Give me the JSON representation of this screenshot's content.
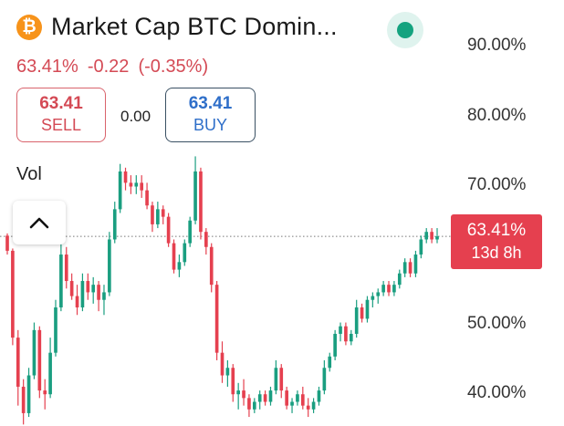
{
  "header": {
    "coin_icon": "bitcoin-icon",
    "coin_glyph": "₿",
    "title": "Market Cap BTC Domin...",
    "live_indicator": "live-dot-icon"
  },
  "quote": {
    "price": "63.41%",
    "change": "-0.22",
    "change_pct": "(-0.35%)"
  },
  "trade": {
    "sell_value": "63.41",
    "sell_label": "SELL",
    "spread": "0.00",
    "buy_value": "63.41",
    "buy_label": "BUY"
  },
  "indicators": {
    "vol_label": "Vol",
    "collapse_icon": "chevron-up-icon"
  },
  "price_tag": {
    "price": "63.41%",
    "countdown": "13d 8h"
  },
  "colors": {
    "up": "#1a9e80",
    "down": "#e5404f",
    "accent": "#f7931a"
  },
  "chart_data": {
    "type": "candlestick",
    "y_tick_labels": [
      "90.00%",
      "80.00%",
      "70.00%",
      "50.00%",
      "40.00%"
    ],
    "y_ticks": [
      90,
      80,
      70,
      50,
      40
    ],
    "ylim": [
      38.3,
      94.7
    ],
    "current_price": 63.41,
    "candles": [
      [
        63.5,
        63.8,
        61.0,
        61.5
      ],
      [
        61.5,
        61.8,
        49.0,
        50.0
      ],
      [
        50.0,
        51.0,
        41.0,
        43.5
      ],
      [
        43.5,
        44.5,
        38.5,
        40.0
      ],
      [
        40.0,
        46.0,
        39.5,
        45.0
      ],
      [
        45.0,
        52.0,
        44.5,
        51.0
      ],
      [
        51.0,
        51.5,
        42.0,
        43.0
      ],
      [
        43.0,
        44.5,
        40.5,
        42.5
      ],
      [
        42.5,
        50.0,
        42.0,
        48.0
      ],
      [
        48.0,
        55.0,
        47.5,
        54.0
      ],
      [
        54.0,
        63.0,
        53.5,
        61.0
      ],
      [
        61.0,
        62.0,
        56.5,
        57.5
      ],
      [
        57.5,
        58.5,
        55.0,
        55.5
      ],
      [
        55.5,
        57.0,
        53.0,
        54.0
      ],
      [
        54.0,
        58.5,
        53.5,
        57.5
      ],
      [
        57.5,
        58.5,
        55.0,
        56.0
      ],
      [
        56.0,
        58.0,
        54.5,
        57.0
      ],
      [
        57.0,
        57.5,
        53.5,
        55.0
      ],
      [
        55.0,
        57.0,
        53.0,
        56.0
      ],
      [
        56.0,
        64.0,
        55.5,
        63.0
      ],
      [
        63.0,
        68.0,
        62.5,
        67.0
      ],
      [
        67.0,
        73.0,
        66.5,
        72.0
      ],
      [
        72.0,
        72.5,
        69.5,
        70.5
      ],
      [
        70.5,
        71.5,
        69.0,
        70.0
      ],
      [
        70.0,
        71.5,
        69.0,
        70.5
      ],
      [
        70.5,
        71.5,
        68.5,
        69.5
      ],
      [
        69.5,
        70.5,
        67.0,
        67.5
      ],
      [
        67.5,
        68.0,
        64.0,
        65.0
      ],
      [
        65.0,
        68.0,
        64.5,
        67.0
      ],
      [
        67.0,
        67.5,
        65.0,
        66.0
      ],
      [
        66.0,
        66.5,
        62.0,
        62.5
      ],
      [
        62.5,
        63.0,
        58.5,
        59.0
      ],
      [
        59.0,
        61.0,
        58.0,
        60.0
      ],
      [
        60.0,
        63.0,
        59.5,
        62.5
      ],
      [
        62.5,
        66.0,
        62.0,
        65.5
      ],
      [
        65.5,
        74.0,
        65.0,
        72.0
      ],
      [
        72.0,
        72.5,
        63.0,
        64.0
      ],
      [
        64.0,
        64.5,
        61.0,
        62.0
      ],
      [
        62.0,
        62.5,
        56.0,
        57.0
      ],
      [
        57.0,
        57.5,
        47.0,
        48.0
      ],
      [
        48.0,
        49.5,
        44.0,
        45.0
      ],
      [
        45.0,
        47.0,
        43.5,
        46.0
      ],
      [
        46.0,
        46.5,
        41.5,
        42.5
      ],
      [
        42.5,
        44.0,
        40.5,
        43.0
      ],
      [
        43.0,
        44.5,
        41.0,
        42.0
      ],
      [
        42.0,
        42.5,
        39.5,
        40.5
      ],
      [
        40.5,
        42.0,
        40.0,
        41.5
      ],
      [
        41.5,
        43.0,
        40.5,
        42.5
      ],
      [
        42.5,
        43.0,
        41.0,
        41.5
      ],
      [
        41.5,
        43.5,
        41.0,
        43.0
      ],
      [
        43.0,
        47.0,
        42.5,
        46.0
      ],
      [
        46.0,
        46.5,
        42.0,
        43.0
      ],
      [
        43.0,
        43.5,
        40.5,
        41.0
      ],
      [
        41.0,
        42.0,
        40.0,
        41.5
      ],
      [
        41.5,
        43.0,
        41.0,
        42.5
      ],
      [
        42.5,
        43.5,
        40.5,
        41.0
      ],
      [
        41.0,
        42.0,
        39.5,
        40.5
      ],
      [
        40.5,
        42.0,
        40.0,
        41.5
      ],
      [
        41.5,
        43.5,
        41.0,
        43.0
      ],
      [
        43.0,
        47.0,
        42.5,
        46.0
      ],
      [
        46.0,
        48.0,
        45.5,
        47.5
      ],
      [
        47.5,
        51.0,
        47.0,
        50.5
      ],
      [
        50.5,
        52.0,
        49.5,
        51.5
      ],
      [
        51.5,
        52.0,
        49.0,
        49.5
      ],
      [
        49.5,
        51.0,
        49.0,
        50.5
      ],
      [
        50.5,
        55.0,
        50.0,
        54.0
      ],
      [
        54.0,
        54.5,
        52.0,
        52.5
      ],
      [
        52.5,
        55.5,
        52.0,
        55.0
      ],
      [
        55.0,
        56.0,
        54.0,
        55.5
      ],
      [
        55.5,
        56.5,
        54.5,
        56.0
      ],
      [
        56.0,
        57.5,
        55.5,
        57.0
      ],
      [
        57.0,
        57.5,
        55.5,
        56.0
      ],
      [
        56.0,
        57.5,
        55.5,
        57.0
      ],
      [
        57.0,
        59.0,
        56.5,
        58.5
      ],
      [
        58.5,
        60.5,
        58.0,
        60.0
      ],
      [
        60.0,
        60.5,
        58.0,
        58.5
      ],
      [
        58.5,
        61.5,
        58.0,
        61.0
      ],
      [
        61.0,
        63.5,
        60.5,
        63.0
      ],
      [
        63.0,
        64.5,
        62.5,
        64.0
      ],
      [
        64.0,
        64.5,
        62.5,
        63.0
      ],
      [
        63.0,
        64.5,
        62.5,
        63.41
      ]
    ]
  }
}
